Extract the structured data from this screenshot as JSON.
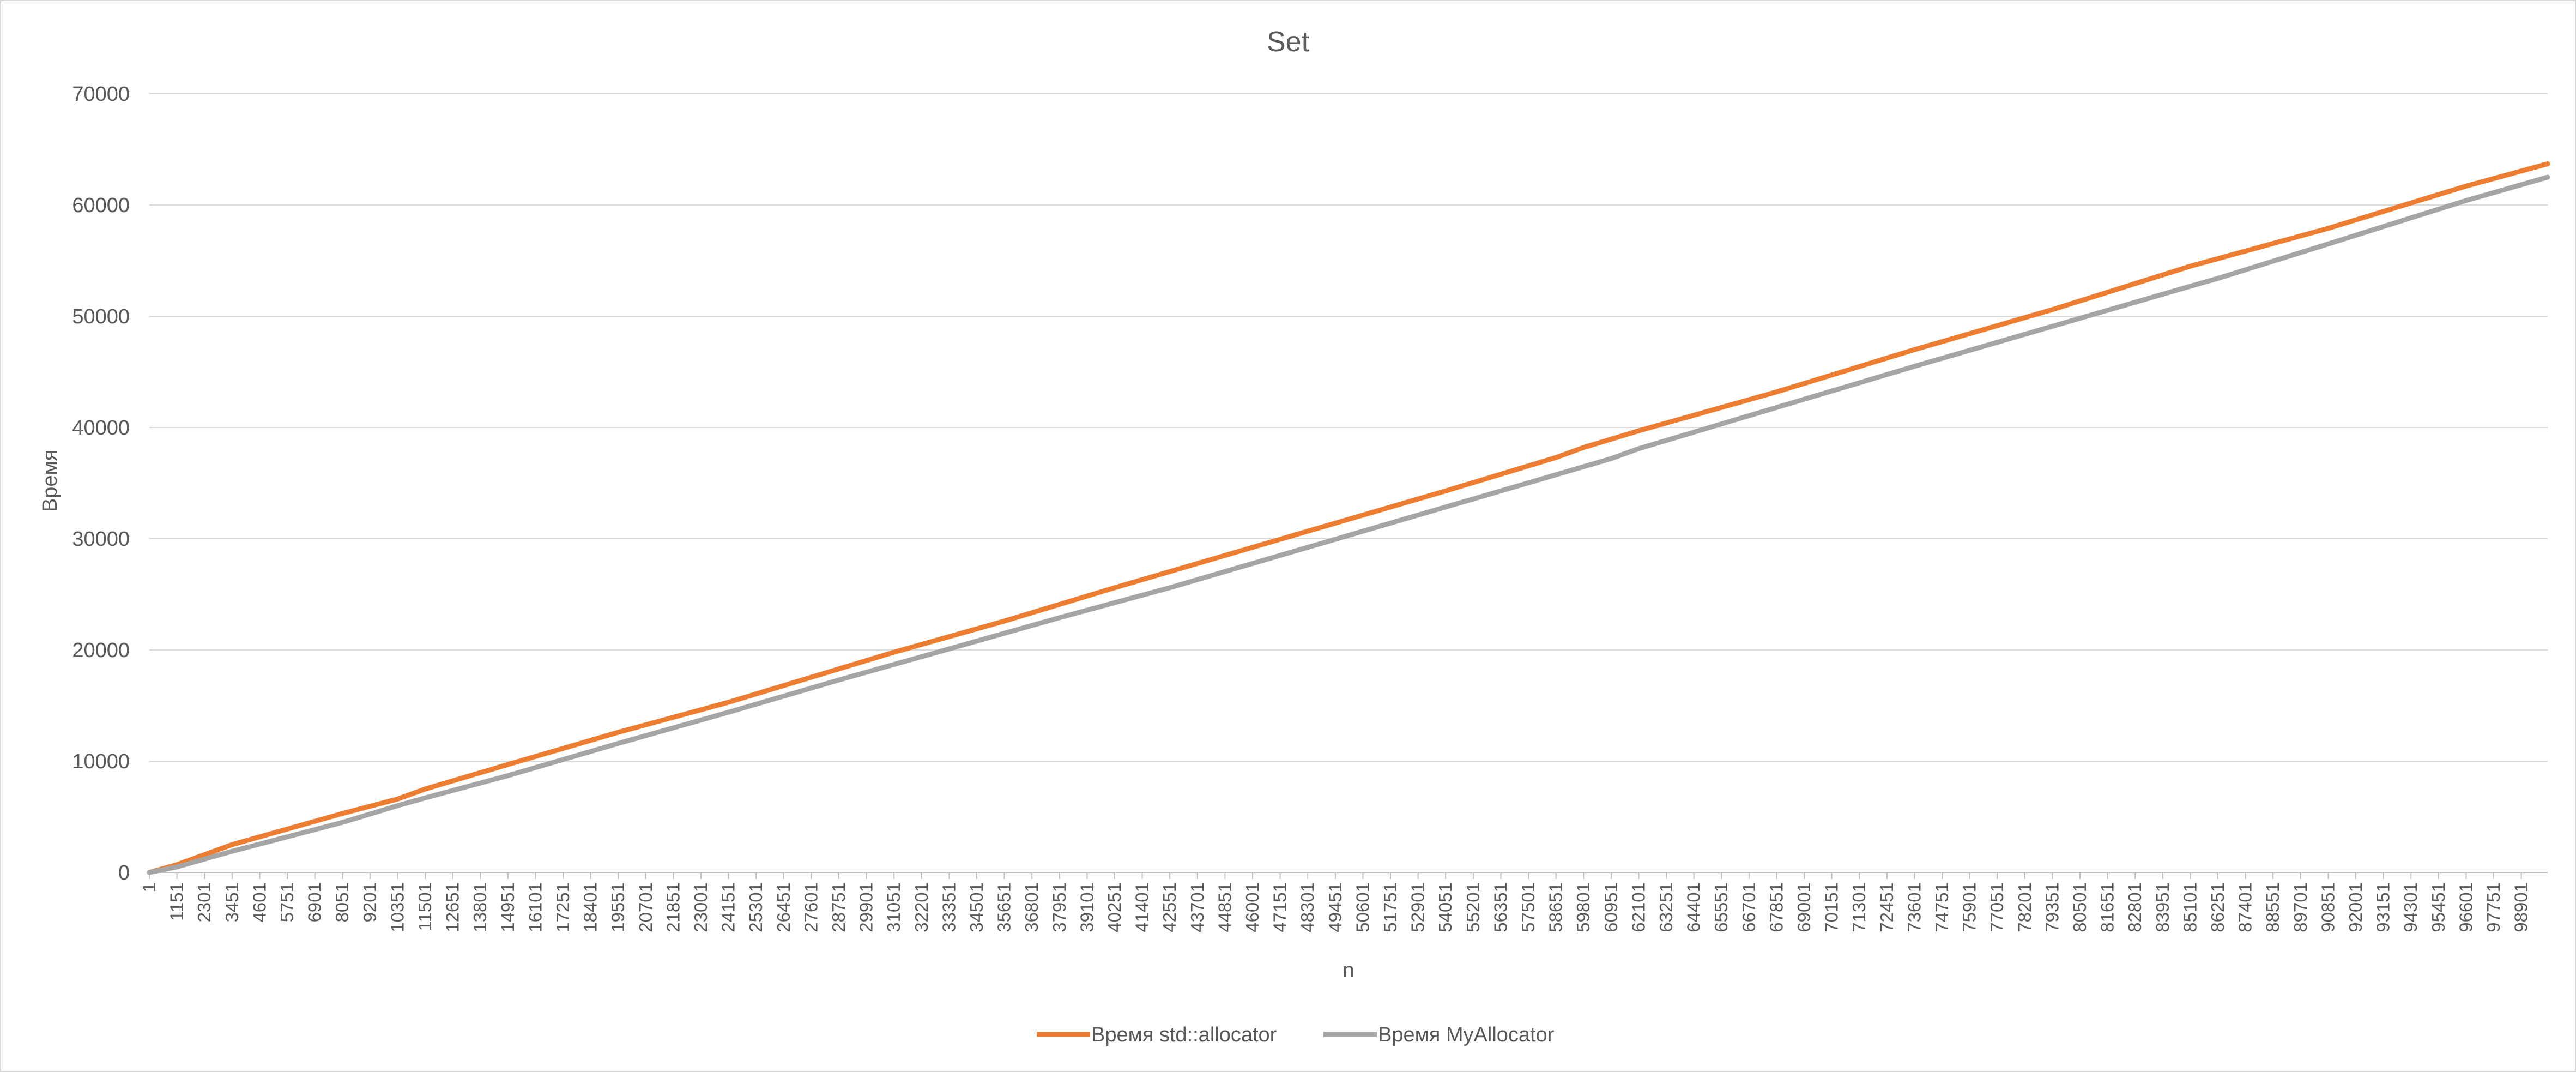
{
  "chart_data": {
    "type": "line",
    "title": "Set",
    "xlabel": "n",
    "ylabel": "Время",
    "ylim": [
      0,
      70000
    ],
    "yticks": [
      0,
      10000,
      20000,
      30000,
      40000,
      50000,
      60000,
      70000
    ],
    "xlim": [
      1,
      100000
    ],
    "xtick_labels": [
      "1",
      "1151",
      "2301",
      "3451",
      "4601",
      "5751",
      "6901",
      "8051",
      "9201",
      "10351",
      "11501",
      "12651",
      "13801",
      "14951",
      "16101",
      "17251",
      "18401",
      "19551",
      "20701",
      "21851",
      "23001",
      "24151",
      "25301",
      "26451",
      "27601",
      "28751",
      "29901",
      "31051",
      "32201",
      "33351",
      "34501",
      "35651",
      "36801",
      "37951",
      "39101",
      "40251",
      "41401",
      "42551",
      "43701",
      "44851",
      "46001",
      "47151",
      "48301",
      "49451",
      "50601",
      "51751",
      "52901",
      "54051",
      "55201",
      "56351",
      "57501",
      "58651",
      "59801",
      "60951",
      "62101",
      "63251",
      "64401",
      "65551",
      "66701",
      "67851",
      "69001",
      "70151",
      "71301",
      "72451",
      "73601",
      "74751",
      "75901",
      "77051",
      "78201",
      "79351",
      "80501",
      "81651",
      "82801",
      "83951",
      "85101",
      "86251",
      "87401",
      "88551",
      "89701",
      "90851",
      "92001",
      "93151",
      "94301",
      "95451",
      "96601",
      "97751",
      "98901"
    ],
    "grid": "horizontal",
    "legend_position": "bottom",
    "series": [
      {
        "name": "Время std::allocator",
        "color": "#ED7D31",
        "x": [
          1,
          1151,
          3451,
          5751,
          8051,
          10351,
          11501,
          14951,
          19551,
          24151,
          28751,
          31051,
          35651,
          40251,
          44851,
          49451,
          54051,
          58651,
          59801,
          62101,
          67851,
          73601,
          79351,
          85101,
          90851,
          96601,
          100000
        ],
        "y": [
          0,
          700,
          2500,
          3900,
          5300,
          6600,
          7500,
          9700,
          12600,
          15300,
          18300,
          19800,
          22600,
          25600,
          28500,
          31400,
          34300,
          37300,
          38200,
          39700,
          43200,
          47000,
          50600,
          54500,
          57900,
          61700,
          63700
        ]
      },
      {
        "name": "Время MyAllocator",
        "color": "#A5A5A5",
        "x": [
          1,
          1151,
          3451,
          5751,
          8051,
          10351,
          11501,
          14951,
          19551,
          24151,
          28751,
          33351,
          37951,
          42551,
          47151,
          51751,
          56351,
          60951,
          62101,
          67851,
          73601,
          79351,
          85101,
          86251,
          90851,
          96601,
          100000
        ],
        "y": [
          0,
          500,
          1900,
          3200,
          4500,
          6000,
          6700,
          8700,
          11600,
          14400,
          17300,
          20100,
          22900,
          25600,
          28500,
          31400,
          34300,
          37200,
          38100,
          41800,
          45500,
          49100,
          52700,
          53400,
          56500,
          60400,
          62500
        ]
      }
    ]
  }
}
